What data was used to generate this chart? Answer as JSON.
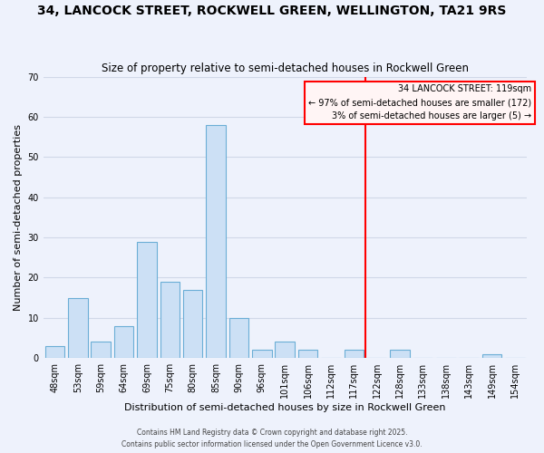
{
  "title1": "34, LANCOCK STREET, ROCKWELL GREEN, WELLINGTON, TA21 9RS",
  "title2": "Size of property relative to semi-detached houses in Rockwell Green",
  "xlabel": "Distribution of semi-detached houses by size in Rockwell Green",
  "ylabel": "Number of semi-detached properties",
  "bin_labels": [
    "48sqm",
    "53sqm",
    "59sqm",
    "64sqm",
    "69sqm",
    "75sqm",
    "80sqm",
    "85sqm",
    "90sqm",
    "96sqm",
    "101sqm",
    "106sqm",
    "112sqm",
    "117sqm",
    "122sqm",
    "128sqm",
    "133sqm",
    "138sqm",
    "143sqm",
    "149sqm",
    "154sqm"
  ],
  "counts": [
    3,
    15,
    4,
    8,
    29,
    19,
    17,
    58,
    10,
    2,
    4,
    2,
    0,
    2,
    0,
    2,
    0,
    0,
    0,
    1,
    0
  ],
  "bar_color": "#cce0f5",
  "bar_edge_color": "#6baed6",
  "vline_color": "red",
  "vline_pos": 13.5,
  "annotation_title": "34 LANCOCK STREET: 119sqm",
  "annotation_line1": "← 97% of semi-detached houses are smaller (172)",
  "annotation_line2": "3% of semi-detached houses are larger (5) →",
  "annotation_box_facecolor": "#fff5f5",
  "annotation_box_edgecolor": "red",
  "ylim": [
    0,
    70
  ],
  "yticks": [
    0,
    10,
    20,
    30,
    40,
    50,
    60,
    70
  ],
  "footer1": "Contains HM Land Registry data © Crown copyright and database right 2025.",
  "footer2": "Contains public sector information licensed under the Open Government Licence v3.0.",
  "bg_color": "#eef2fc",
  "grid_color": "#d0d8e8",
  "title1_fontsize": 10,
  "title2_fontsize": 8.5,
  "xlabel_fontsize": 8,
  "ylabel_fontsize": 8,
  "tick_fontsize": 7,
  "annotation_fontsize": 7,
  "footer_fontsize": 5.5
}
